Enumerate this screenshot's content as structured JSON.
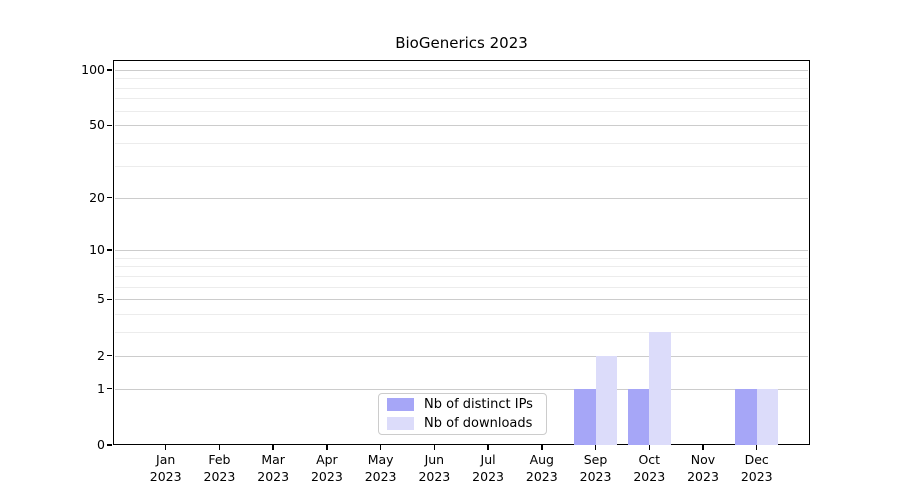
{
  "title": "BioGenerics 2023",
  "colors": {
    "distinct_ips": "#a6a6f7",
    "downloads": "#dcdcfa",
    "grid_major": "#cccccc",
    "grid_minor": "#ececec",
    "spine": "#000000"
  },
  "legend": {
    "items": [
      {
        "label": "Nb of distinct IPs",
        "color_key": "distinct_ips"
      },
      {
        "label": "Nb of downloads",
        "color_key": "downloads"
      }
    ]
  },
  "chart_data": {
    "type": "bar",
    "title": "BioGenerics 2023",
    "categories": [
      "Jan 2023",
      "Feb 2023",
      "Mar 2023",
      "Apr 2023",
      "May 2023",
      "Jun 2023",
      "Jul 2023",
      "Aug 2023",
      "Sep 2023",
      "Oct 2023",
      "Nov 2023",
      "Dec 2023"
    ],
    "series": [
      {
        "name": "Nb of distinct IPs",
        "color_key": "distinct_ips",
        "values": [
          0,
          0,
          0,
          0,
          0,
          0,
          0,
          0,
          1,
          1,
          0,
          1
        ]
      },
      {
        "name": "Nb of downloads",
        "color_key": "downloads",
        "values": [
          0,
          0,
          0,
          0,
          0,
          0,
          0,
          0,
          2,
          3,
          0,
          1
        ]
      }
    ],
    "xlabel": "",
    "ylabel": "",
    "yscale": "log1p",
    "ylim": [
      0,
      113
    ],
    "yticks": [
      0,
      1,
      2,
      5,
      10,
      20,
      50,
      100
    ],
    "yticks_minor": [
      3,
      4,
      6,
      7,
      8,
      9,
      30,
      40,
      60,
      70,
      80,
      90
    ],
    "grid": "horizontal-major-and-minor",
    "legend_position": "lower-center"
  }
}
